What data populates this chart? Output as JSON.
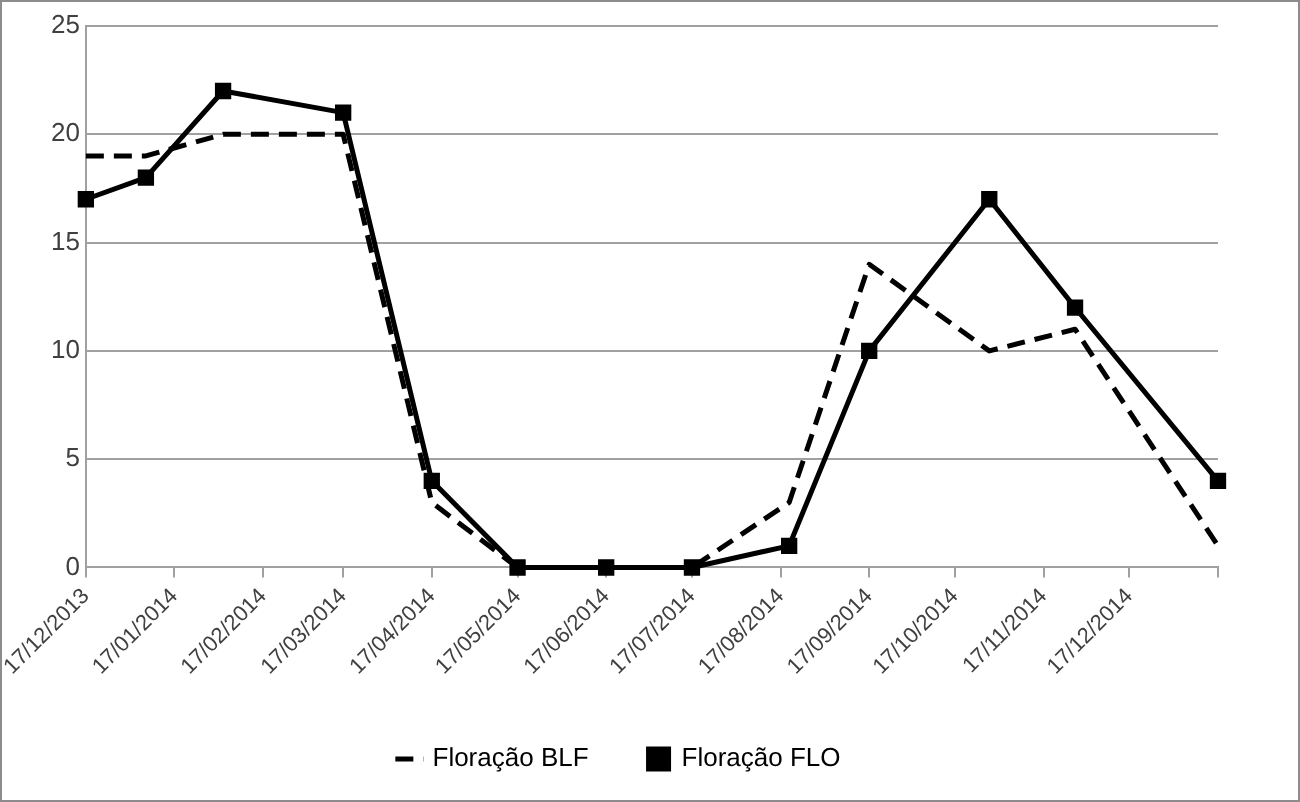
{
  "chart_data": {
    "type": "line",
    "xlim": [
      "2013-12-17",
      "2015-01-17"
    ],
    "xticks": [
      {
        "value": "2013-12-17",
        "label": "17/12/2013"
      },
      {
        "value": "2014-01-17",
        "label": "17/01/2014"
      },
      {
        "value": "2014-02-17",
        "label": "17/02/2014"
      },
      {
        "value": "2014-03-17",
        "label": "17/03/2014"
      },
      {
        "value": "2014-04-17",
        "label": "17/04/2014"
      },
      {
        "value": "2014-05-17",
        "label": "17/05/2014"
      },
      {
        "value": "2014-06-17",
        "label": "17/06/2014"
      },
      {
        "value": "2014-07-17",
        "label": "17/07/2014"
      },
      {
        "value": "2014-08-17",
        "label": "17/08/2014"
      },
      {
        "value": "2014-09-17",
        "label": "17/09/2014"
      },
      {
        "value": "2014-10-17",
        "label": "17/10/2014"
      },
      {
        "value": "2014-11-17",
        "label": "17/11/2014"
      },
      {
        "value": "2014-12-17",
        "label": "17/12/2014"
      },
      {
        "value": "2015-01-17",
        "label": null
      }
    ],
    "x": [
      "2013-12-17",
      "2014-01-07",
      "2014-02-03",
      "2014-03-17",
      "2014-04-17",
      "2014-05-17",
      "2014-06-17",
      "2014-07-17",
      "2014-08-20",
      "2014-09-17",
      "2014-10-29",
      "2014-11-28",
      "2015-01-17"
    ],
    "ylim": [
      0,
      25
    ],
    "yticks": [
      0,
      5,
      10,
      15,
      20,
      25
    ],
    "grid": "y",
    "legend": "bottom",
    "series": [
      {
        "name": "Floração BLF",
        "color": "#000000",
        "line_style": "dashed",
        "marker": "none",
        "values": [
          19,
          19,
          20,
          20,
          3,
          0,
          0,
          0,
          3,
          14,
          10,
          11,
          1
        ]
      },
      {
        "name": "Floração FLO",
        "color": "#000000",
        "line_style": "solid",
        "marker": "square",
        "values": [
          17,
          18,
          22,
          21,
          4,
          0,
          0,
          0,
          1,
          10,
          17,
          12,
          4
        ]
      }
    ]
  }
}
